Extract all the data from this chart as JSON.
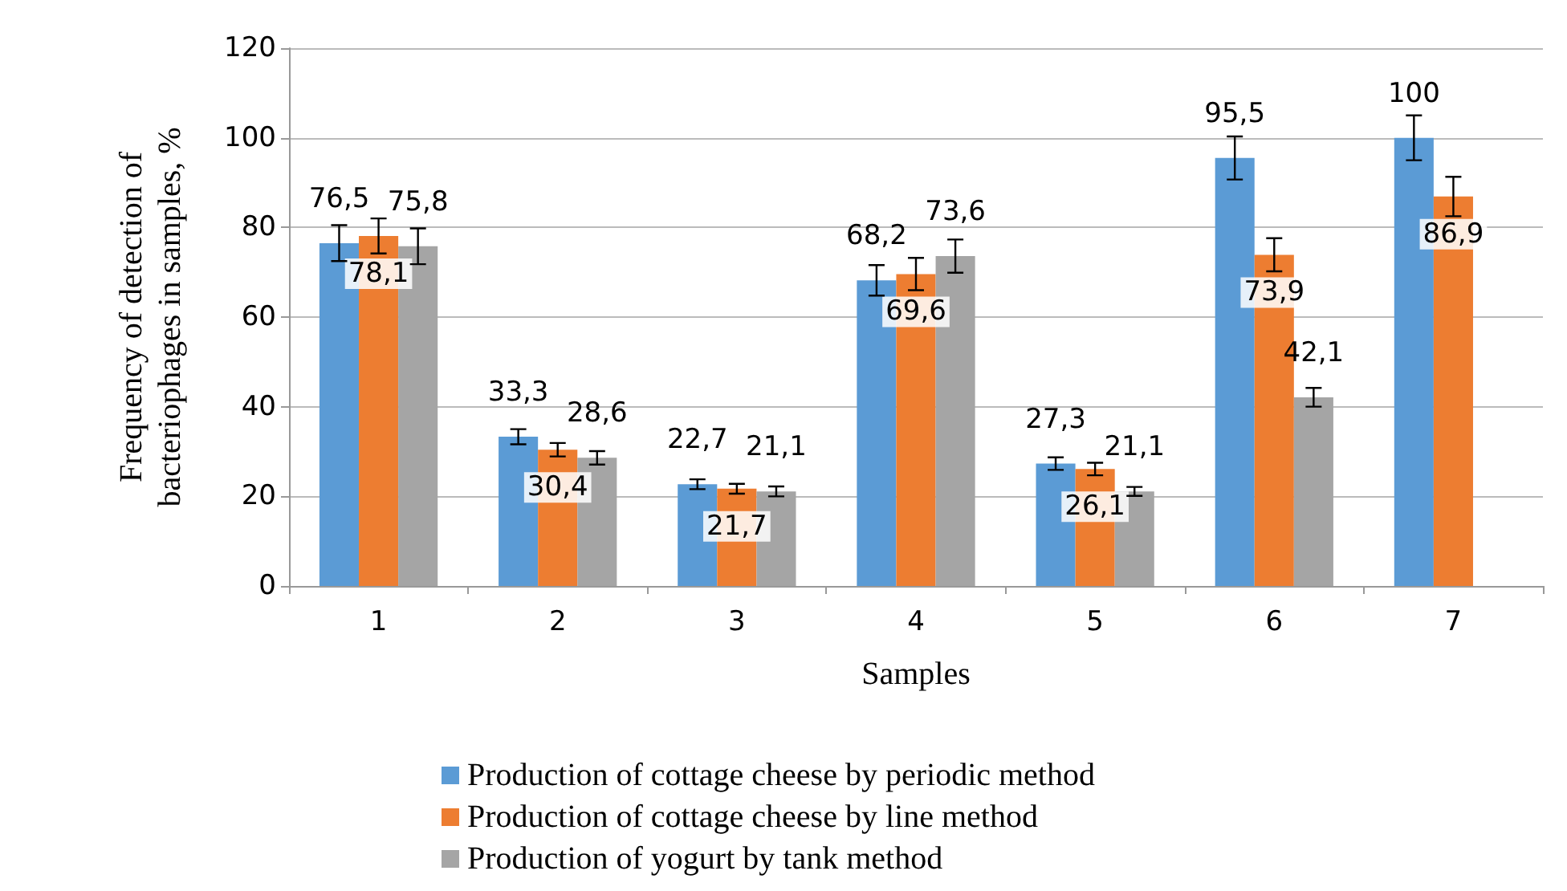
{
  "chart_data": {
    "type": "bar",
    "xlabel": "Samples",
    "ylabel": "Frequency of detection of bacteriophages in samples, %",
    "categories": [
      "1",
      "2",
      "3",
      "4",
      "5",
      "6",
      "7"
    ],
    "series": [
      {
        "name": "Production of cottage cheese by periodic method",
        "color": "#5b9bd5",
        "values": [
          76.5,
          33.3,
          22.7,
          68.2,
          27.3,
          95.5,
          100
        ],
        "errors": [
          4,
          1.7,
          1.1,
          3.4,
          1.4,
          4.8,
          5
        ],
        "value_labels": [
          "76,5",
          "33,3",
          "22,7",
          "68,2",
          "27,3",
          "95,5",
          "100"
        ]
      },
      {
        "name": "Production of cottage cheese by line method",
        "color": "#ed7d31",
        "values": [
          78.1,
          30.4,
          21.7,
          69.6,
          26.1,
          73.9,
          86.9
        ],
        "errors": [
          3.9,
          1.5,
          1.1,
          3.6,
          1.4,
          3.7,
          4.4
        ],
        "value_labels": [
          "78,1",
          "30,4",
          "21,7",
          "69,6",
          "26,1",
          "73,9",
          "86,9"
        ]
      },
      {
        "name": "Production of yogurt by tank method",
        "color": "#a5a5a5",
        "values": [
          75.8,
          28.6,
          21.1,
          73.6,
          21.1,
          42.1,
          null
        ],
        "errors": [
          4,
          1.5,
          1.1,
          3.7,
          1,
          2.1,
          null
        ],
        "value_labels": [
          "75,8",
          "28,6",
          "21,1",
          "73,6",
          "21,1",
          "42,1",
          null
        ]
      }
    ],
    "ylim": [
      0,
      120
    ],
    "yticks": [
      0,
      20,
      40,
      60,
      80,
      100,
      120
    ],
    "grid": "y",
    "legend": "bottom"
  }
}
